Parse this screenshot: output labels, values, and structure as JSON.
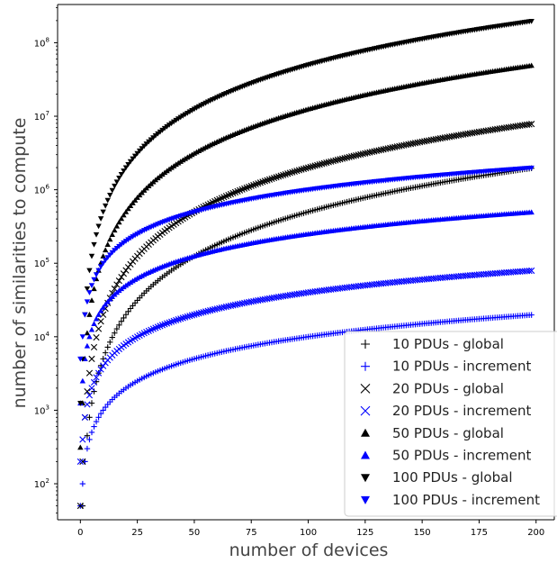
{
  "chart_data": {
    "type": "scatter",
    "xlabel": "number of devices",
    "ylabel": "number of similarities to compute",
    "xlim": [
      -10,
      208
    ],
    "ylim_log10": [
      1.51,
      8.52
    ],
    "y_scale": "log",
    "x_ticks": [
      "0",
      "25",
      "50",
      "75",
      "100",
      "125",
      "150",
      "175",
      "200"
    ],
    "y_ticks": [
      {
        "value": 100,
        "base": "10",
        "exp": "2"
      },
      {
        "value": 1000,
        "base": "10",
        "exp": "3"
      },
      {
        "value": 10000,
        "base": "10",
        "exp": "4"
      },
      {
        "value": 100000,
        "base": "10",
        "exp": "5"
      },
      {
        "value": 1000000,
        "base": "10",
        "exp": "6"
      },
      {
        "value": 10000000,
        "base": "10",
        "exp": "7"
      },
      {
        "value": 100000000,
        "base": "10",
        "exp": "8"
      }
    ],
    "grid": false,
    "legend_position": "lower-right",
    "x": {
      "start": 0,
      "end": 198,
      "step": 1
    },
    "series": [
      {
        "name": "10 PDUs - global",
        "marker": "plus",
        "color": "#000000",
        "y_formula": "(n*10)^2/2",
        "y_at_x198": 1960200
      },
      {
        "name": "10 PDUs - increment",
        "marker": "plus",
        "color": "#0000ff",
        "y_formula": "n*10^2",
        "y_at_x198": 19800
      },
      {
        "name": "20 PDUs - global",
        "marker": "x",
        "color": "#000000",
        "y_formula": "(n*20)^2/2",
        "y_at_x198": 7840800
      },
      {
        "name": "20 PDUs - increment",
        "marker": "x",
        "color": "#0000ff",
        "y_formula": "n*20^2",
        "y_at_x198": 79200
      },
      {
        "name": "50 PDUs - global",
        "marker": "triangle-up",
        "color": "#000000",
        "y_formula": "(n*50)^2/2",
        "y_at_x198": 49005000
      },
      {
        "name": "50 PDUs - increment",
        "marker": "triangle-up",
        "color": "#0000ff",
        "y_formula": "n*50^2",
        "y_at_x198": 495000
      },
      {
        "name": "100 PDUs - global",
        "marker": "triangle-down",
        "color": "#000000",
        "y_formula": "(n*100)^2/2",
        "y_at_x198": 196020000
      },
      {
        "name": "100 PDUs - increment",
        "marker": "triangle-down",
        "color": "#0000ff",
        "y_formula": "n*100^2",
        "y_at_x198": 1980000
      }
    ]
  }
}
